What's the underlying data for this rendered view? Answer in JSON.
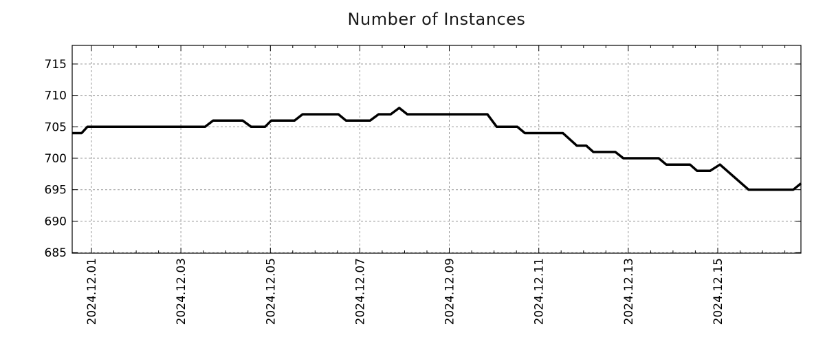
{
  "chart_data": {
    "type": "line",
    "title": "Number of Instances",
    "xlabel": "",
    "ylabel": "",
    "legend": "none",
    "grid": true,
    "x_unit": "days since 2024-12-01",
    "xlim_days": [
      -0.43,
      15.86
    ],
    "ylim": [
      684.9,
      717.95
    ],
    "y_ticks": [
      685,
      690,
      695,
      700,
      705,
      710,
      715
    ],
    "x_major_ticks": [
      {
        "day": 0,
        "label": "2024.12.01"
      },
      {
        "day": 2,
        "label": "2024.12.03"
      },
      {
        "day": 4,
        "label": "2024.12.05"
      },
      {
        "day": 6,
        "label": "2024.12.07"
      },
      {
        "day": 8,
        "label": "2024.12.09"
      },
      {
        "day": 10,
        "label": "2024.12.11"
      },
      {
        "day": 12,
        "label": "2024.12.13"
      },
      {
        "day": 14,
        "label": "2024.12.15"
      }
    ],
    "x_minor_tick_interval_days": 0.5,
    "style": {
      "line_color": "#000000",
      "line_width": 3.5,
      "grid_color": "#9a9a9a",
      "grid_dash": "3 3",
      "axis_color": "#000000",
      "text_color": "#000000",
      "background": "#ffffff",
      "tick_font_size": 17,
      "title_font_size": 24
    },
    "series": [
      {
        "name": "Number of Instances",
        "points": [
          [
            -0.43,
            704
          ],
          [
            -0.22,
            704
          ],
          [
            -0.09,
            705
          ],
          [
            2.54,
            705
          ],
          [
            2.72,
            706
          ],
          [
            3.38,
            706
          ],
          [
            3.57,
            705
          ],
          [
            3.88,
            705
          ],
          [
            4.02,
            706
          ],
          [
            4.54,
            706
          ],
          [
            4.72,
            707
          ],
          [
            5.52,
            707
          ],
          [
            5.69,
            706
          ],
          [
            6.23,
            706
          ],
          [
            6.42,
            707
          ],
          [
            6.69,
            707
          ],
          [
            6.88,
            708
          ],
          [
            7.06,
            707
          ],
          [
            8.85,
            707
          ],
          [
            9.06,
            705
          ],
          [
            9.52,
            705
          ],
          [
            9.69,
            704
          ],
          [
            10.54,
            704
          ],
          [
            10.85,
            702
          ],
          [
            11.06,
            702
          ],
          [
            11.22,
            701
          ],
          [
            11.71,
            701
          ],
          [
            11.89,
            700
          ],
          [
            12.68,
            700
          ],
          [
            12.85,
            699
          ],
          [
            13.38,
            699
          ],
          [
            13.54,
            698
          ],
          [
            13.83,
            698
          ],
          [
            14.05,
            699
          ],
          [
            14.69,
            695
          ],
          [
            15.69,
            695
          ],
          [
            15.86,
            696
          ]
        ]
      }
    ]
  }
}
